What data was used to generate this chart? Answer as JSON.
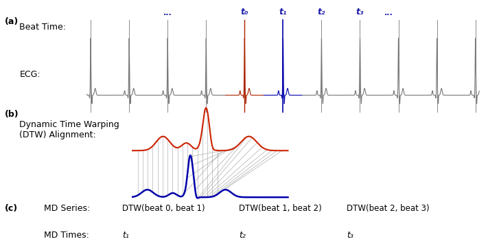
{
  "fig_width": 7.11,
  "fig_height": 3.64,
  "bg_color": "#ffffff",
  "panel_a_label": "(a)",
  "panel_b_label": "(b)",
  "panel_c_label": "(c)",
  "beat_time_label": "Beat Time:",
  "ecg_label": "ECG:",
  "dtw_label": "Dynamic Time Warping\n(DTW) Alignment:",
  "md_series_label": "MD Series:",
  "md_times_label": "MD Times:",
  "beat_label_color": "#1a1aaa",
  "ecg_color_normal": "#777777",
  "ecg_color_t0": "#aa2200",
  "ecg_color_t1": "#0000aa",
  "dtw_red_color": "#cc2200",
  "dtw_blue_color": "#0000aa",
  "dtw_line_color": "#aaaaaa",
  "dtw_diag_color": "#999999",
  "dtw_series": [
    "DTW(beat 0, beat 1)",
    "DTW(beat 1, beat 2)",
    "DTW(beat 2, beat 3)"
  ],
  "md_times": [
    "t₁",
    "t₂",
    "t₃"
  ]
}
